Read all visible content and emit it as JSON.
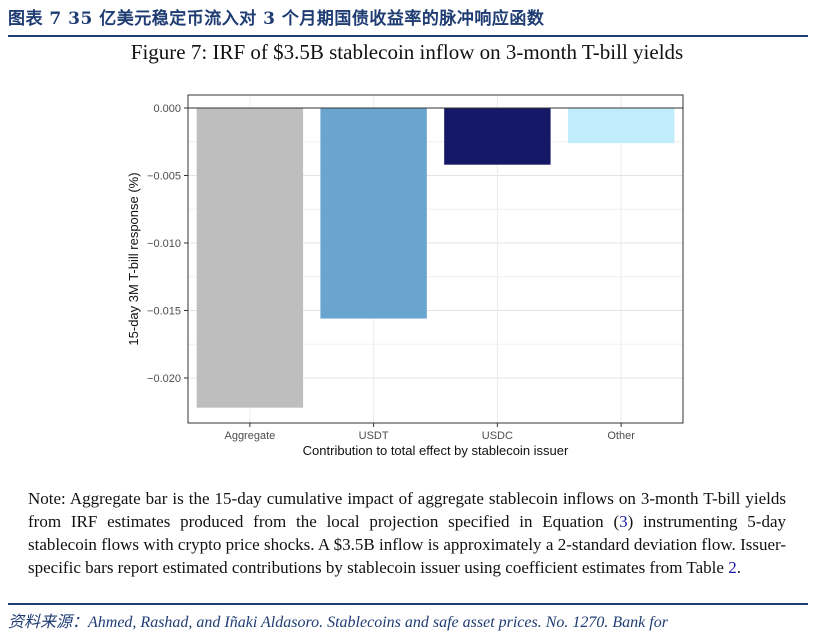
{
  "header": {
    "title": "图表 7   35 亿美元稳定币流入对 3 个月期国债收益率的脉冲响应函数"
  },
  "figure": {
    "title": "Figure 7: IRF of $3.5B stablecoin inflow on 3-month T-bill yields"
  },
  "chart_data": {
    "type": "bar",
    "categories": [
      "Aggregate",
      "USDT",
      "USDC",
      "Other"
    ],
    "values": [
      -0.0222,
      -0.0156,
      -0.0042,
      -0.0026
    ],
    "colors": [
      "#bebebe",
      "#6aa5cf",
      "#141866",
      "#c0ecfb"
    ],
    "xlabel": "Contribution to total effect by stablecoin issuer",
    "ylabel": "15-day 3M T-bill response (%)",
    "ylim": [
      -0.0223,
      0.0
    ],
    "yticks": [
      0.0,
      -0.005,
      -0.01,
      -0.015,
      -0.02
    ],
    "ytick_labels": [
      "0.000",
      "−0.005",
      "−0.010",
      "−0.015",
      "−0.020"
    ],
    "grid": true,
    "legend": "none"
  },
  "note": {
    "part1": "Note: Aggregate bar is the 15-day cumulative impact of aggregate stablecoin inflows on 3-month T-bill yields from IRF estimates produced from the local projection specified in Equation (",
    "eq_ref": "3",
    "part2": ") instrumenting 5-day stablecoin flows with crypto price shocks. A $3.5B inflow is approximately a 2-standard deviation flow. Issuer-specific bars report estimated contributions by stablecoin issuer using coefficient estimates from Table ",
    "table_ref": "2",
    "part3": "."
  },
  "source": {
    "text": "资料来源：Ahmed, Rashad, and Iñaki Aldasoro. Stablecoins and safe asset prices. No. 1270. Bank for"
  }
}
